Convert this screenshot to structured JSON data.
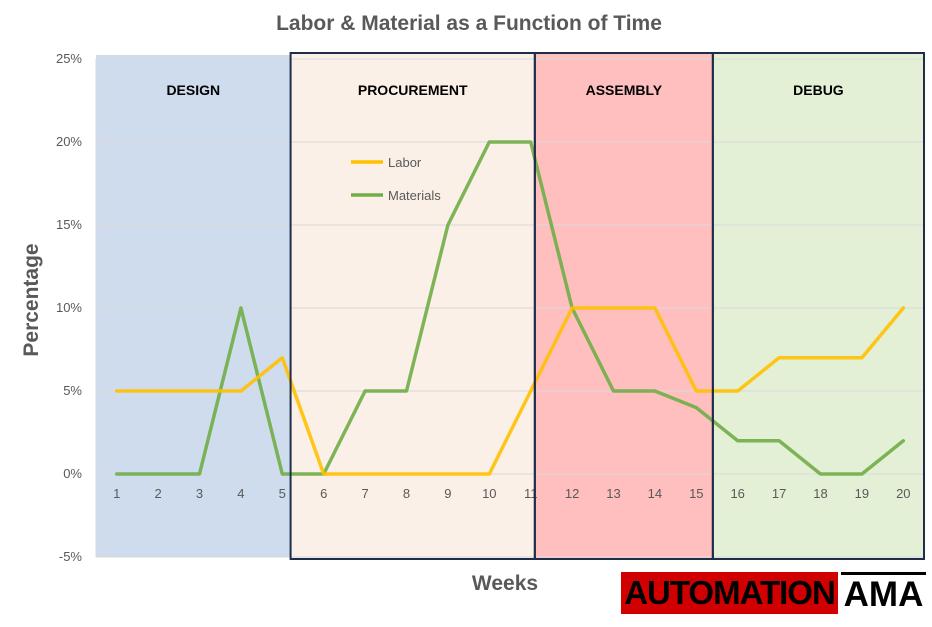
{
  "chart_data": {
    "type": "line",
    "title": "Labor & Material as a Function of Time",
    "xlabel": "Weeks",
    "ylabel": "Percentage",
    "x": [
      1,
      2,
      3,
      4,
      5,
      6,
      7,
      8,
      9,
      10,
      11,
      12,
      13,
      14,
      15,
      16,
      17,
      18,
      19,
      20
    ],
    "ylim": [
      -5,
      25
    ],
    "yticks": [
      "25%",
      "20%",
      "15%",
      "10%",
      "5%",
      "0%",
      "-5%"
    ],
    "grid": true,
    "legend_position": "top-center",
    "series": [
      {
        "name": "Labor",
        "color": "#ffc000",
        "values": [
          5,
          5,
          5,
          5,
          7,
          0,
          0,
          0,
          0,
          0,
          5,
          10,
          10,
          10,
          5,
          5,
          7,
          7,
          7,
          10
        ]
      },
      {
        "name": "Materials",
        "color": "#70ad47",
        "values": [
          0,
          0,
          0,
          10,
          0,
          0,
          5,
          5,
          15,
          20,
          20,
          10,
          5,
          5,
          4,
          2,
          2,
          0,
          0,
          2
        ]
      }
    ],
    "phases": [
      {
        "label": "DESIGN",
        "start_week": 0.5,
        "end_week": 5.2,
        "color": "#cfdcee"
      },
      {
        "label": "PROCUREMENT",
        "start_week": 5.2,
        "end_week": 11.1,
        "color": "#fbf0e7"
      },
      {
        "label": "ASSEMBLY",
        "start_week": 11.1,
        "end_week": 15.4,
        "color": "#ffbfbf"
      },
      {
        "label": "DEBUG",
        "start_week": 15.4,
        "end_week": 20.5,
        "color": "#e3f0d6"
      }
    ]
  },
  "logo": {
    "left_text": "AUTOMATION",
    "right_text": "AMA"
  }
}
